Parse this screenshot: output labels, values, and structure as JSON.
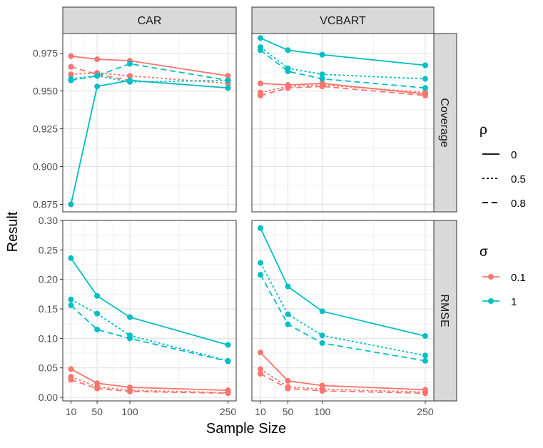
{
  "chart_data": {
    "type": "line",
    "ylabel": "Result",
    "xlabel": "Sample Size",
    "x": [
      10,
      50,
      100,
      250
    ],
    "x_ticks": [
      "10",
      "50",
      "100",
      "250"
    ],
    "grid": true,
    "legend_position": "right",
    "facet_columns": [
      "CAR",
      "VCBART"
    ],
    "facet_rows": [
      "Coverage",
      "RMSE"
    ],
    "color_legend": {
      "title": "σ",
      "entries": [
        {
          "label": "0.1",
          "color": "#F8766D"
        },
        {
          "label": "1",
          "color": "#00BFC4"
        }
      ]
    },
    "linetype_legend": {
      "title": "ρ",
      "entries": [
        {
          "label": "0",
          "dash": "solid"
        },
        {
          "label": "0.5",
          "dash": "dotted"
        },
        {
          "label": "0.8",
          "dash": "dashed"
        }
      ]
    },
    "rows": [
      {
        "strip": "Coverage",
        "ylim": [
          0.87,
          0.988
        ],
        "y_ticks": [
          "0.875",
          "0.900",
          "0.925",
          "0.950",
          "0.975"
        ],
        "y_tick_values": [
          0.875,
          0.9,
          0.925,
          0.95,
          0.975
        ]
      },
      {
        "strip": "RMSE",
        "ylim": [
          -0.006,
          0.3
        ],
        "y_ticks": [
          "0.00",
          "0.05",
          "0.10",
          "0.15",
          "0.20",
          "0.25",
          "0.30"
        ],
        "y_tick_values": [
          0.0,
          0.05,
          0.1,
          0.15,
          0.2,
          0.25,
          0.3
        ]
      }
    ],
    "panels": [
      {
        "col": "CAR",
        "row": "Coverage",
        "series": [
          {
            "sigma": "0.1",
            "rho": "0",
            "values": [
              0.973,
              0.971,
              0.97,
              0.96
            ]
          },
          {
            "sigma": "0.1",
            "rho": "0.5",
            "values": [
              0.961,
              0.962,
              0.96,
              0.955
            ]
          },
          {
            "sigma": "0.1",
            "rho": "0.8",
            "values": [
              0.966,
              0.961,
              0.957,
              0.952
            ]
          },
          {
            "sigma": "1",
            "rho": "0",
            "values": [
              0.875,
              0.953,
              0.957,
              0.952
            ]
          },
          {
            "sigma": "1",
            "rho": "0.5",
            "values": [
              0.958,
              0.96,
              0.956,
              0.957
            ]
          },
          {
            "sigma": "1",
            "rho": "0.8",
            "values": [
              0.957,
              0.96,
              0.968,
              0.957
            ]
          }
        ]
      },
      {
        "col": "VCBART",
        "row": "Coverage",
        "series": [
          {
            "sigma": "0.1",
            "rho": "0",
            "values": [
              0.955,
              0.954,
              0.955,
              0.948
            ]
          },
          {
            "sigma": "0.1",
            "rho": "0.5",
            "values": [
              0.949,
              0.953,
              0.954,
              0.949
            ]
          },
          {
            "sigma": "0.1",
            "rho": "0.8",
            "values": [
              0.947,
              0.952,
              0.953,
              0.947
            ]
          },
          {
            "sigma": "1",
            "rho": "0",
            "values": [
              0.985,
              0.977,
              0.974,
              0.967
            ]
          },
          {
            "sigma": "1",
            "rho": "0.5",
            "values": [
              0.979,
              0.965,
              0.961,
              0.958
            ]
          },
          {
            "sigma": "1",
            "rho": "0.8",
            "values": [
              0.977,
              0.963,
              0.958,
              0.952
            ]
          }
        ]
      },
      {
        "col": "CAR",
        "row": "RMSE",
        "series": [
          {
            "sigma": "0.1",
            "rho": "0",
            "values": [
              0.048,
              0.024,
              0.017,
              0.012
            ]
          },
          {
            "sigma": "0.1",
            "rho": "0.5",
            "values": [
              0.035,
              0.018,
              0.012,
              0.008
            ]
          },
          {
            "sigma": "0.1",
            "rho": "0.8",
            "values": [
              0.03,
              0.015,
              0.01,
              0.007
            ]
          },
          {
            "sigma": "1",
            "rho": "0",
            "values": [
              0.236,
              0.172,
              0.136,
              0.089
            ]
          },
          {
            "sigma": "1",
            "rho": "0.5",
            "values": [
              0.166,
              0.142,
              0.105,
              0.062
            ]
          },
          {
            "sigma": "1",
            "rho": "0.8",
            "values": [
              0.156,
              0.115,
              0.1,
              0.061
            ]
          }
        ]
      },
      {
        "col": "VCBART",
        "row": "RMSE",
        "series": [
          {
            "sigma": "0.1",
            "rho": "0",
            "values": [
              0.076,
              0.028,
              0.02,
              0.013
            ]
          },
          {
            "sigma": "0.1",
            "rho": "0.5",
            "values": [
              0.048,
              0.018,
              0.014,
              0.009
            ]
          },
          {
            "sigma": "0.1",
            "rho": "0.8",
            "values": [
              0.04,
              0.015,
              0.011,
              0.007
            ]
          },
          {
            "sigma": "1",
            "rho": "0",
            "values": [
              0.287,
              0.188,
              0.146,
              0.104
            ]
          },
          {
            "sigma": "1",
            "rho": "0.5",
            "values": [
              0.228,
              0.141,
              0.105,
              0.071
            ]
          },
          {
            "sigma": "1",
            "rho": "0.8",
            "values": [
              0.208,
              0.124,
              0.092,
              0.062
            ]
          }
        ]
      }
    ]
  }
}
